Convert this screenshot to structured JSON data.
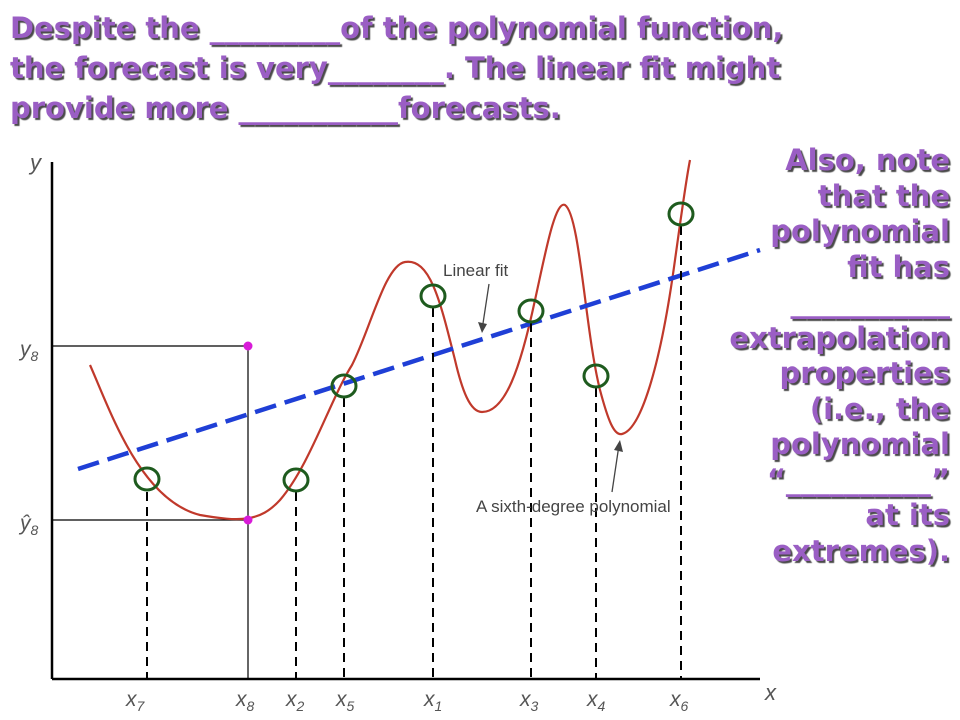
{
  "heading": {
    "lines": [
      "Despite the _________of the polynomial function,",
      "the forecast is very________.  The linear fit might",
      "provide more ___________forecasts."
    ]
  },
  "side_note": {
    "lines": [
      "Also, note",
      "that the",
      "polynomial",
      "fit has",
      "___________",
      "extrapolation",
      "properties",
      "(i.e., the",
      "polynomial",
      "“__________”",
      "at its",
      "extremes)."
    ]
  },
  "diagram": {
    "y_axis_label": "y",
    "x_axis_label": "x",
    "y8_label": "y",
    "y8_subscript": "8",
    "y8hat_label": "ŷ",
    "y8hat_subscript": "8",
    "x_ticks": [
      {
        "base": "x",
        "sub": "7"
      },
      {
        "base": "x",
        "sub": "8"
      },
      {
        "base": "x",
        "sub": "2"
      },
      {
        "base": "x",
        "sub": "5"
      },
      {
        "base": "x",
        "sub": "1"
      },
      {
        "base": "x",
        "sub": "3"
      },
      {
        "base": "x",
        "sub": "4"
      },
      {
        "base": "x",
        "sub": "6"
      }
    ],
    "linear_fit_label": "Linear fit",
    "polynomial_label": "A sixth-degree polynomial",
    "colors": {
      "axis": "#000000",
      "polynomial": "#c0392b",
      "linear_fit": "#1f3fd6",
      "marker": "#1e5b1e",
      "highlight": "#d81bd8",
      "heading_text": "#9a5ec4"
    }
  }
}
